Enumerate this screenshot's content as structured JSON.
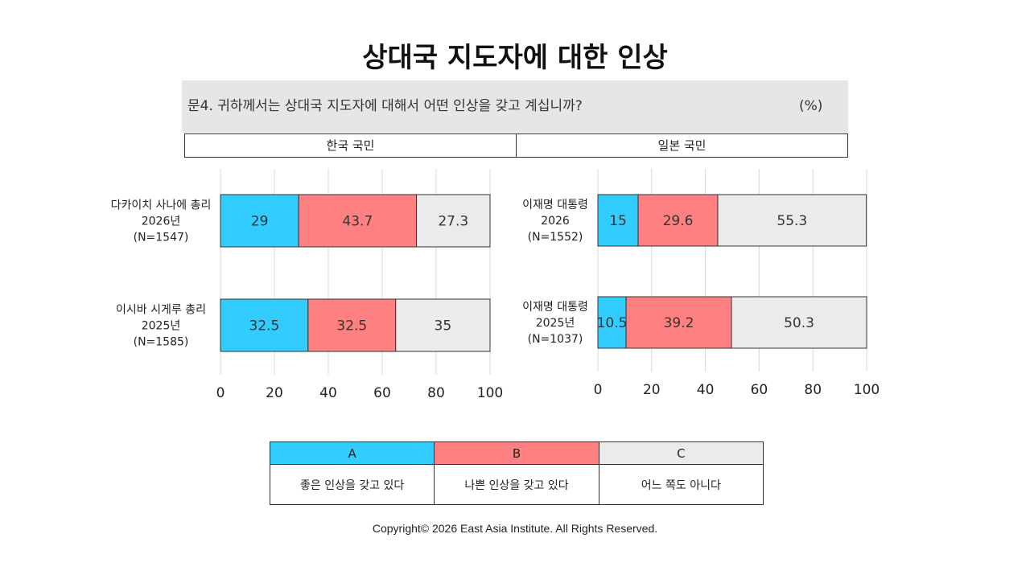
{
  "title": "상대국 지도자에 대한 인상",
  "question": {
    "text": "문4. 귀하께서는 상대국 지도자에 대해서 어떤 인상을 갖고 계십니까?",
    "unit": "(%)"
  },
  "chart_data": [
    {
      "type": "bar",
      "orientation": "horizontal",
      "stacked": true,
      "title": "한국 국민",
      "categories": [
        [
          "다카이치 사나에 총리",
          "2026년",
          "(N=1547)"
        ],
        [
          "이시바 시게루 총리",
          "2025년",
          "(N=1585)"
        ]
      ],
      "series": [
        {
          "name": "A",
          "values": [
            29,
            32.5
          ]
        },
        {
          "name": "B",
          "values": [
            43.7,
            32.5
          ]
        },
        {
          "name": "C",
          "values": [
            27.3,
            35
          ]
        }
      ],
      "xlim": [
        0,
        100
      ],
      "xticks": [
        0,
        20,
        40,
        60,
        80,
        100
      ],
      "grid": true
    },
    {
      "type": "bar",
      "orientation": "horizontal",
      "stacked": true,
      "title": "일본 국민",
      "categories": [
        [
          "이재명 대통령",
          "2026",
          "(N=1552)"
        ],
        [
          "이재명 대통령",
          "2025년",
          "(N=1037)"
        ]
      ],
      "series": [
        {
          "name": "A",
          "values": [
            15,
            10.5
          ]
        },
        {
          "name": "B",
          "values": [
            29.6,
            39.2
          ]
        },
        {
          "name": "C",
          "values": [
            55.3,
            50.3
          ]
        }
      ],
      "xlim": [
        0,
        100
      ],
      "xticks": [
        0,
        20,
        40,
        60,
        80,
        100
      ],
      "grid": true
    }
  ],
  "legend": [
    {
      "key": "A",
      "label": "좋은 인상을 갖고 있다",
      "color": "#33CCFF"
    },
    {
      "key": "B",
      "label": "나쁜 인상을 갖고 있다",
      "color": "#FF8080"
    },
    {
      "key": "C",
      "label": "어느 쪽도 아니다",
      "color": "#EBEBEB"
    }
  ],
  "copyright": "Copyright© 2026 East Asia Institute. All Rights Reserved."
}
